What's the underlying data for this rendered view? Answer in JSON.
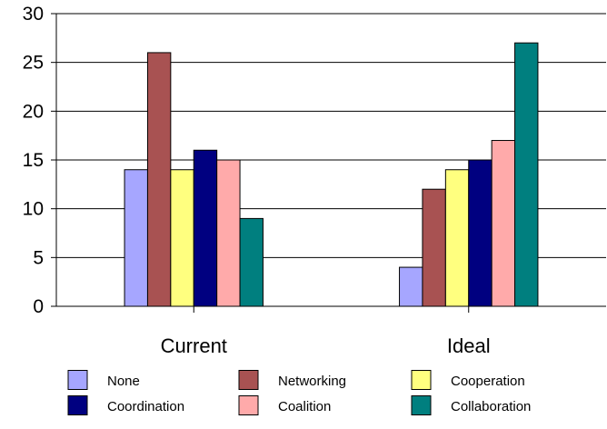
{
  "chart_data": {
    "type": "bar",
    "categories": [
      "Current",
      "Ideal"
    ],
    "series": [
      {
        "name": "None",
        "color": "#a6a6ff",
        "values": [
          14,
          4
        ]
      },
      {
        "name": "Networking",
        "color": "#a85252",
        "values": [
          26,
          12
        ]
      },
      {
        "name": "Cooperation",
        "color": "#ffff7f",
        "values": [
          14,
          14
        ]
      },
      {
        "name": "Coordination",
        "color": "#000080",
        "values": [
          16,
          15
        ]
      },
      {
        "name": "Coalition",
        "color": "#ffaaaa",
        "values": [
          15,
          17
        ]
      },
      {
        "name": "Collaboration",
        "color": "#007f7f",
        "values": [
          9,
          27
        ]
      }
    ],
    "yticks": [
      0,
      5,
      10,
      15,
      20,
      25,
      30
    ],
    "ylim": [
      0,
      30
    ],
    "title": "",
    "xlabel": "",
    "ylabel": "",
    "grid": true,
    "legend": "bottom"
  }
}
